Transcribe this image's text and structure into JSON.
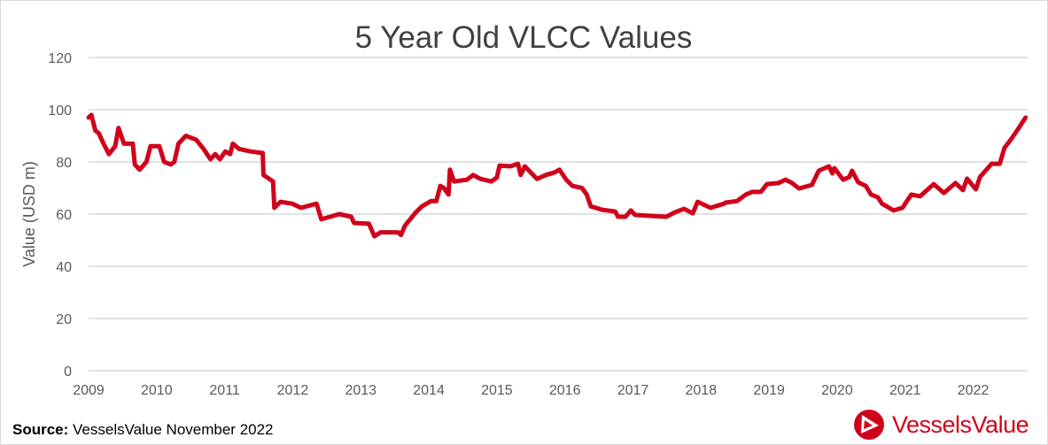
{
  "chart_data": {
    "type": "line",
    "title": "5 Year Old VLCC Values",
    "xlabel": "",
    "ylabel": "Value (USD m)",
    "xlim": [
      2009,
      2022.8
    ],
    "ylim": [
      0,
      120
    ],
    "xticks": [
      "2009",
      "2010",
      "2011",
      "2012",
      "2013",
      "2014",
      "2015",
      "2016",
      "2017",
      "2018",
      "2019",
      "2020",
      "2021",
      "2022"
    ],
    "yticks": [
      0,
      20,
      40,
      60,
      80,
      100,
      120
    ],
    "grid": "horizontal",
    "line_color": "#d0021b",
    "series": [
      {
        "points": [
          [
            2009.0,
            97
          ],
          [
            2009.04,
            98
          ],
          [
            2009.1,
            92
          ],
          [
            2009.15,
            91
          ],
          [
            2009.22,
            87
          ],
          [
            2009.3,
            83
          ],
          [
            2009.39,
            86
          ],
          [
            2009.44,
            93
          ],
          [
            2009.52,
            87
          ],
          [
            2009.65,
            87
          ],
          [
            2009.68,
            79
          ],
          [
            2009.75,
            77
          ],
          [
            2009.85,
            80
          ],
          [
            2009.91,
            86
          ],
          [
            2010.04,
            86
          ],
          [
            2010.11,
            80
          ],
          [
            2010.21,
            79
          ],
          [
            2010.26,
            80
          ],
          [
            2010.32,
            87
          ],
          [
            2010.43,
            90
          ],
          [
            2010.58,
            88.5
          ],
          [
            2010.69,
            85
          ],
          [
            2010.79,
            81
          ],
          [
            2010.86,
            83
          ],
          [
            2010.93,
            81
          ],
          [
            2011.01,
            84
          ],
          [
            2011.08,
            83
          ],
          [
            2011.12,
            87
          ],
          [
            2011.21,
            85
          ],
          [
            2011.38,
            84
          ],
          [
            2011.56,
            83.4
          ],
          [
            2011.57,
            75
          ],
          [
            2011.71,
            72.5
          ],
          [
            2011.73,
            62.4
          ],
          [
            2011.82,
            64.7
          ],
          [
            2011.99,
            64
          ],
          [
            2012.12,
            62.4
          ],
          [
            2012.35,
            64
          ],
          [
            2012.42,
            58
          ],
          [
            2012.55,
            59
          ],
          [
            2012.68,
            60
          ],
          [
            2012.86,
            59
          ],
          [
            2012.9,
            56.6
          ],
          [
            2013.12,
            56.3
          ],
          [
            2013.2,
            51.5
          ],
          [
            2013.29,
            53
          ],
          [
            2013.55,
            53
          ],
          [
            2013.59,
            52
          ],
          [
            2013.65,
            55.6
          ],
          [
            2013.81,
            60.7
          ],
          [
            2013.9,
            63
          ],
          [
            2014.03,
            65
          ],
          [
            2014.11,
            65
          ],
          [
            2014.17,
            70.8
          ],
          [
            2014.22,
            70
          ],
          [
            2014.29,
            67.5
          ],
          [
            2014.31,
            77
          ],
          [
            2014.37,
            72.5
          ],
          [
            2014.56,
            73.2
          ],
          [
            2014.65,
            75
          ],
          [
            2014.76,
            73.5
          ],
          [
            2014.92,
            72.5
          ],
          [
            2015.0,
            74
          ],
          [
            2015.04,
            78.6
          ],
          [
            2015.2,
            78.3
          ],
          [
            2015.31,
            79.3
          ],
          [
            2015.35,
            75
          ],
          [
            2015.41,
            78.3
          ],
          [
            2015.59,
            73.5
          ],
          [
            2015.72,
            75
          ],
          [
            2015.85,
            76
          ],
          [
            2015.92,
            77
          ],
          [
            2016.02,
            73.2
          ],
          [
            2016.11,
            70.8
          ],
          [
            2016.25,
            70
          ],
          [
            2016.32,
            67.5
          ],
          [
            2016.38,
            63
          ],
          [
            2016.54,
            61.7
          ],
          [
            2016.74,
            61
          ],
          [
            2016.78,
            59
          ],
          [
            2016.89,
            59
          ],
          [
            2016.97,
            61.4
          ],
          [
            2017.03,
            59.7
          ],
          [
            2017.28,
            59.3
          ],
          [
            2017.49,
            59
          ],
          [
            2017.62,
            60.7
          ],
          [
            2017.75,
            62
          ],
          [
            2017.88,
            60.3
          ],
          [
            2017.95,
            64.7
          ],
          [
            2018.14,
            62.4
          ],
          [
            2018.34,
            64
          ],
          [
            2018.36,
            64.4
          ],
          [
            2018.53,
            65
          ],
          [
            2018.66,
            67.5
          ],
          [
            2018.75,
            68.5
          ],
          [
            2018.88,
            68.5
          ],
          [
            2018.97,
            71.5
          ],
          [
            2019.14,
            71.9
          ],
          [
            2019.24,
            73.2
          ],
          [
            2019.34,
            71.9
          ],
          [
            2019.44,
            69.8
          ],
          [
            2019.63,
            71.2
          ],
          [
            2019.73,
            76.6
          ],
          [
            2019.88,
            78.3
          ],
          [
            2019.93,
            75.6
          ],
          [
            2019.96,
            77.6
          ],
          [
            2020.09,
            73.2
          ],
          [
            2020.18,
            74.2
          ],
          [
            2020.22,
            76.6
          ],
          [
            2020.31,
            72.2
          ],
          [
            2020.42,
            70.8
          ],
          [
            2020.5,
            67.5
          ],
          [
            2020.6,
            66.4
          ],
          [
            2020.66,
            64
          ],
          [
            2020.83,
            61.4
          ],
          [
            2020.96,
            62.4
          ],
          [
            2021.09,
            67.5
          ],
          [
            2021.22,
            66.8
          ],
          [
            2021.42,
            71.5
          ],
          [
            2021.57,
            68.1
          ],
          [
            2021.74,
            71.9
          ],
          [
            2021.85,
            69.2
          ],
          [
            2021.91,
            73.6
          ],
          [
            2022.04,
            69.5
          ],
          [
            2022.1,
            74.2
          ],
          [
            2022.27,
            79.3
          ],
          [
            2022.39,
            79.3
          ],
          [
            2022.46,
            85.4
          ],
          [
            2022.56,
            88.8
          ],
          [
            2022.65,
            92.2
          ],
          [
            2022.77,
            97
          ]
        ]
      }
    ]
  },
  "footer": {
    "source_label": "Source:",
    "source_text": " VesselsValue November 2022"
  },
  "logo": {
    "text": "VesselsValue",
    "color": "#d0021b"
  }
}
